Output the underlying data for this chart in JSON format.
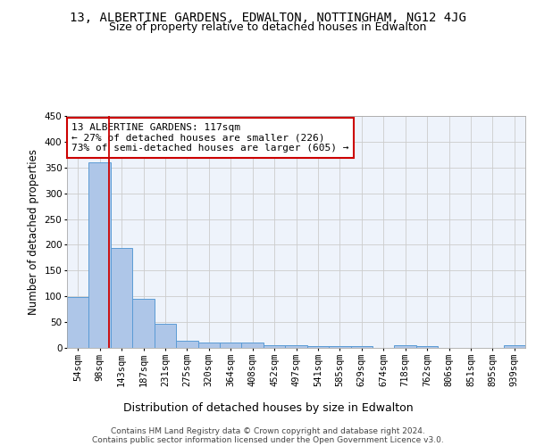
{
  "title1": "13, ALBERTINE GARDENS, EDWALTON, NOTTINGHAM, NG12 4JG",
  "title2": "Size of property relative to detached houses in Edwalton",
  "xlabel": "Distribution of detached houses by size in Edwalton",
  "ylabel": "Number of detached properties",
  "footer1": "Contains HM Land Registry data © Crown copyright and database right 2024.",
  "footer2": "Contains public sector information licensed under the Open Government Licence v3.0.",
  "categories": [
    "54sqm",
    "98sqm",
    "143sqm",
    "187sqm",
    "231sqm",
    "275sqm",
    "320sqm",
    "364sqm",
    "408sqm",
    "452sqm",
    "497sqm",
    "541sqm",
    "585sqm",
    "629sqm",
    "674sqm",
    "718sqm",
    "762sqm",
    "806sqm",
    "851sqm",
    "895sqm",
    "939sqm"
  ],
  "values": [
    98,
    360,
    193,
    95,
    46,
    14,
    10,
    10,
    10,
    6,
    5,
    3,
    3,
    3,
    0,
    5,
    4,
    0,
    0,
    0,
    5
  ],
  "bar_color": "#aec6e8",
  "bar_edge_color": "#5b9bd5",
  "grid_color": "#cccccc",
  "bg_color": "#eef3fb",
  "annotation_text": "13 ALBERTINE GARDENS: 117sqm\n← 27% of detached houses are smaller (226)\n73% of semi-detached houses are larger (605) →",
  "annotation_box_color": "#ffffff",
  "annotation_box_edge": "#cc0000",
  "ylim": [
    0,
    450
  ],
  "yticks": [
    0,
    50,
    100,
    150,
    200,
    250,
    300,
    350,
    400,
    450
  ],
  "title1_fontsize": 10,
  "title2_fontsize": 9,
  "xlabel_fontsize": 9,
  "ylabel_fontsize": 8.5,
  "tick_fontsize": 7.5,
  "annotation_fontsize": 8,
  "footer_fontsize": 6.5
}
